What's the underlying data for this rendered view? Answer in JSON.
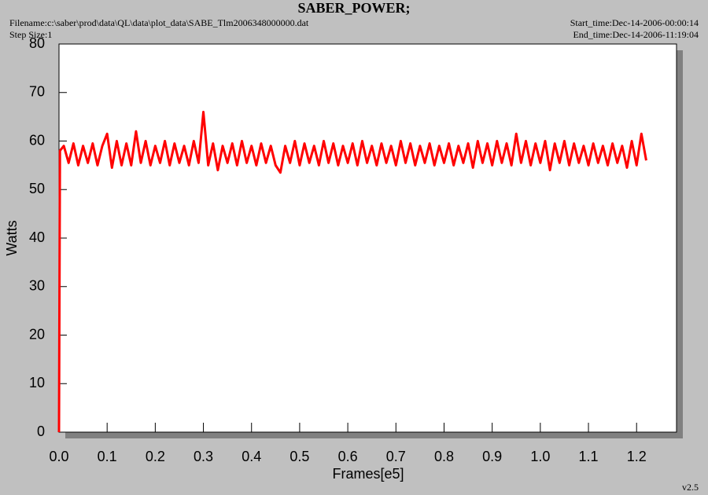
{
  "chart_data": {
    "type": "line",
    "title": "SABER_POWER;",
    "filename": "Filename:c:\\saber\\prod\\data\\QL\\data\\plot_data\\SABE_Tlm2006348000000.dat",
    "step_size": "Step Size:1",
    "start_time": "Start_time:Dec-14-2006-00:00:14",
    "end_time": "End_time:Dec-14-2006-11:19:04",
    "version": "v2.5",
    "xlabel": "Frames[e5]",
    "ylabel": "Watts",
    "xlim": [
      0,
      1.283
    ],
    "ylim": [
      0,
      80
    ],
    "xticks": [
      {
        "value": 0,
        "label": "0.0"
      },
      0.1,
      0.2,
      0.3,
      0.4,
      0.5,
      0.6,
      0.7,
      0.8,
      0.9,
      {
        "value": 1,
        "label": "1.0"
      },
      1.1,
      1.2
    ],
    "yticks": [
      0,
      10,
      20,
      30,
      40,
      50,
      60,
      70,
      80
    ],
    "series": [
      {
        "name": "SABER_POWER",
        "color": "#ff0000",
        "x": [
          0,
          0.002,
          0.01,
          0.02,
          0.03,
          0.04,
          0.05,
          0.06,
          0.07,
          0.08,
          0.09,
          0.1,
          0.11,
          0.12,
          0.13,
          0.14,
          0.15,
          0.16,
          0.17,
          0.18,
          0.19,
          0.2,
          0.21,
          0.22,
          0.23,
          0.24,
          0.25,
          0.26,
          0.27,
          0.28,
          0.29,
          0.3,
          0.31,
          0.32,
          0.33,
          0.34,
          0.35,
          0.36,
          0.37,
          0.38,
          0.39,
          0.4,
          0.41,
          0.42,
          0.43,
          0.44,
          0.45,
          0.46,
          0.47,
          0.48,
          0.49,
          0.5,
          0.51,
          0.52,
          0.53,
          0.54,
          0.55,
          0.56,
          0.57,
          0.58,
          0.59,
          0.6,
          0.61,
          0.62,
          0.63,
          0.64,
          0.65,
          0.66,
          0.67,
          0.68,
          0.69,
          0.7,
          0.71,
          0.72,
          0.73,
          0.74,
          0.75,
          0.76,
          0.77,
          0.78,
          0.79,
          0.8,
          0.81,
          0.82,
          0.83,
          0.84,
          0.85,
          0.86,
          0.87,
          0.88,
          0.89,
          0.9,
          0.91,
          0.92,
          0.93,
          0.94,
          0.95,
          0.96,
          0.97,
          0.98,
          0.99,
          1.0,
          1.01,
          1.02,
          1.03,
          1.04,
          1.05,
          1.06,
          1.07,
          1.08,
          1.09,
          1.1,
          1.11,
          1.12,
          1.13,
          1.14,
          1.15,
          1.16,
          1.17,
          1.18,
          1.19,
          1.2,
          1.21,
          1.22
        ],
        "values": [
          0,
          58,
          59,
          55.5,
          59.5,
          55,
          59,
          55.5,
          59.5,
          55,
          59,
          61.5,
          54.5,
          60,
          55,
          59.5,
          55,
          62,
          55.5,
          60,
          55,
          59,
          55.5,
          60,
          55,
          59.5,
          55.5,
          59,
          55,
          60,
          55.5,
          66,
          55,
          59.5,
          54,
          59,
          55.5,
          59.5,
          55,
          60,
          55.5,
          59,
          55,
          59.5,
          55.5,
          59,
          55,
          53.5,
          59,
          55.5,
          60,
          55,
          59.5,
          55.5,
          59,
          55,
          60,
          55.5,
          59.5,
          55,
          59,
          55.5,
          59.5,
          55,
          60,
          55.5,
          59,
          55,
          59.5,
          55.5,
          59,
          55,
          60,
          55.5,
          59.5,
          55,
          59,
          55.5,
          59.5,
          55,
          59,
          55.5,
          59.5,
          55,
          59,
          55.5,
          59.5,
          54.5,
          60,
          55.5,
          59.5,
          55,
          60,
          55.5,
          59.5,
          55,
          61.5,
          55.5,
          60,
          55,
          59.5,
          55.5,
          60,
          54,
          59.5,
          55.5,
          60,
          55,
          59.5,
          55.5,
          59,
          55,
          59.5,
          55.5,
          59,
          55,
          59.5,
          55.5,
          59,
          54.5,
          60,
          55,
          61.5,
          56
        ]
      }
    ]
  }
}
